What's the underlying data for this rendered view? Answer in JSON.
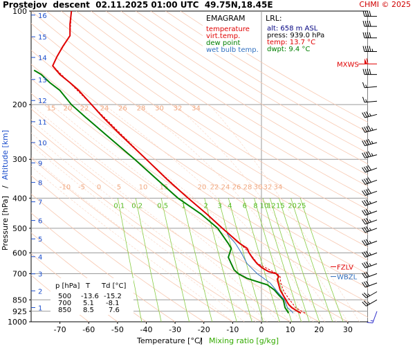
{
  "header": {
    "title": "Prostejov  descent  02.11.2025 01:00 UTC  49.75N,18.45E",
    "copyright": "CHMI © 2025"
  },
  "chart_data": {
    "type": "line",
    "title": "EMAGRAM",
    "xlabel": "Temperature [°C]",
    "xlabel_sep": "/",
    "xlabel2": "Mixing ratio [g/kg]",
    "ylabel": "Pressure [hPa]",
    "ylabel_sep": "/",
    "ylabel2": "Altitude [km]",
    "xlim": [
      -80,
      37
    ],
    "ylim_hpa": [
      1000,
      100
    ],
    "y_scale": "log",
    "x_ticks": [
      -70,
      -60,
      -50,
      -40,
      -30,
      -20,
      -10,
      0,
      10,
      20,
      30
    ],
    "pressure_ticks": [
      100,
      200,
      300,
      400,
      500,
      600,
      700,
      850,
      925,
      1000
    ],
    "altitude_ticks": [
      {
        "km": 1,
        "p": 900
      },
      {
        "km": 2,
        "p": 795
      },
      {
        "km": 3,
        "p": 701
      },
      {
        "km": 4,
        "p": 617
      },
      {
        "km": 5,
        "p": 541
      },
      {
        "km": 6,
        "p": 472
      },
      {
        "km": 7,
        "p": 411
      },
      {
        "km": 8,
        "p": 356
      },
      {
        "km": 9,
        "p": 308
      },
      {
        "km": 10,
        "p": 265
      },
      {
        "km": 11,
        "p": 227
      },
      {
        "km": 12,
        "p": 194
      },
      {
        "km": 13,
        "p": 166
      },
      {
        "km": 14,
        "p": 141
      },
      {
        "km": 15,
        "p": 121
      },
      {
        "km": 16,
        "p": 103
      }
    ],
    "dry_adiabat_labels": [
      "15",
      "20",
      "22",
      "24",
      "26",
      "28",
      "30",
      "32",
      "34"
    ],
    "moist_adiabat_labels": [
      "-10",
      "-5",
      "0",
      "5",
      "10",
      "15",
      "20",
      "22",
      "24",
      "26",
      "28",
      "30",
      "32",
      "34"
    ],
    "mixing_ratio_labels": [
      {
        "label": "0.1",
        "w": 0.1
      },
      {
        "label": "0.2",
        "w": 0.2
      },
      {
        "label": "0.5",
        "w": 0.5
      },
      {
        "label": "1",
        "w": 1
      },
      {
        "label": "2",
        "w": 2
      },
      {
        "label": "3",
        "w": 3
      },
      {
        "label": "4",
        "w": 4
      },
      {
        "label": "6",
        "w": 6
      },
      {
        "label": "8",
        "w": 8
      },
      {
        "label": "10",
        "w": 10
      },
      {
        "label": "12",
        "w": 12
      },
      {
        "label": "15",
        "w": 15
      },
      {
        "label": "20",
        "w": 20
      },
      {
        "label": "25",
        "w": 25
      }
    ],
    "legend": [
      {
        "name": "temperature",
        "color": "#e00000"
      },
      {
        "name": "virt.temp.",
        "color": "#e00000"
      },
      {
        "name": "dew point",
        "color": "#008000"
      },
      {
        "name": "wet bulb temp.",
        "color": "#3070c0"
      }
    ],
    "lrl": {
      "title": "LRL:",
      "alt": "alt: 658 m ASL",
      "press": "press: 939.0 hPa",
      "temp": "temp: 13.7 °C",
      "dwpt": "dwpt: 9.4 °C"
    },
    "markers": [
      {
        "label": "MXWS",
        "p": 148,
        "color": "#e00000"
      },
      {
        "label": "FZLV",
        "p": 665,
        "color": "#e00000"
      },
      {
        "label": "WBZL",
        "p": 715,
        "color": "#3070c0"
      }
    ],
    "table": {
      "headers": [
        "p [hPa]",
        "T",
        "Td [°C]"
      ],
      "rows": [
        [
          "500",
          "-13.6",
          "-15.2"
        ],
        [
          "700",
          "5.1",
          "-8.1"
        ],
        [
          "850",
          "8.5",
          "7.6"
        ]
      ]
    },
    "series": [
      {
        "name": "temperature",
        "color": "#e00000",
        "points": [
          [
            938,
            13.7
          ],
          [
            925,
            12.5
          ],
          [
            900,
            10.5
          ],
          [
            880,
            9.5
          ],
          [
            860,
            8.8
          ],
          [
            850,
            8.5
          ],
          [
            820,
            7.5
          ],
          [
            790,
            6.5
          ],
          [
            760,
            6.0
          ],
          [
            730,
            5.5
          ],
          [
            715,
            6.0
          ],
          [
            700,
            5.1
          ],
          [
            690,
            2.5
          ],
          [
            670,
            0.2
          ],
          [
            650,
            -1.5
          ],
          [
            625,
            -3.0
          ],
          [
            600,
            -4.3
          ],
          [
            580,
            -5.0
          ],
          [
            560,
            -7.5
          ],
          [
            500,
            -13.6
          ],
          [
            450,
            -19.0
          ],
          [
            400,
            -25.5
          ],
          [
            350,
            -32.5
          ],
          [
            300,
            -40.0
          ],
          [
            250,
            -49.0
          ],
          [
            220,
            -55.0
          ],
          [
            200,
            -59.0
          ],
          [
            180,
            -63.5
          ],
          [
            170,
            -66.5
          ],
          [
            160,
            -70.0
          ],
          [
            150,
            -72.5
          ],
          [
            140,
            -71.0
          ],
          [
            130,
            -69.0
          ],
          [
            120,
            -66.5
          ],
          [
            110,
            -66.5
          ],
          [
            100,
            -66.0
          ]
        ]
      },
      {
        "name": "virt.temp.",
        "color": "#e00000",
        "points": [
          [
            938,
            15.2
          ],
          [
            925,
            14.0
          ],
          [
            900,
            11.9
          ],
          [
            850,
            9.8
          ],
          [
            800,
            7.8
          ],
          [
            750,
            6.7
          ],
          [
            715,
            6.5
          ],
          [
            700,
            5.4
          ],
          [
            650,
            -1.3
          ],
          [
            600,
            -4.2
          ],
          [
            560,
            -7.4
          ],
          [
            500,
            -13.5
          ],
          [
            450,
            -19.0
          ],
          [
            400,
            -25.5
          ],
          [
            300,
            -40.0
          ],
          [
            200,
            -59.0
          ],
          [
            150,
            -72.5
          ],
          [
            140,
            -71.0
          ],
          [
            120,
            -66.5
          ],
          [
            100,
            -66.0
          ]
        ]
      },
      {
        "name": "dew point",
        "color": "#008000",
        "points": [
          [
            938,
            9.4
          ],
          [
            925,
            9.0
          ],
          [
            900,
            8.2
          ],
          [
            850,
            7.6
          ],
          [
            820,
            6.0
          ],
          [
            790,
            4.5
          ],
          [
            760,
            2.0
          ],
          [
            740,
            -2.0
          ],
          [
            725,
            -5.0
          ],
          [
            700,
            -8.1
          ],
          [
            680,
            -9.5
          ],
          [
            650,
            -10.5
          ],
          [
            620,
            -11.5
          ],
          [
            600,
            -11.0
          ],
          [
            580,
            -10.5
          ],
          [
            560,
            -11.5
          ],
          [
            500,
            -15.2
          ],
          [
            450,
            -21.0
          ],
          [
            400,
            -29.0
          ],
          [
            350,
            -36.0
          ],
          [
            300,
            -44.0
          ],
          [
            250,
            -54.0
          ],
          [
            220,
            -61.0
          ],
          [
            200,
            -66.0
          ],
          [
            180,
            -70.0
          ],
          [
            170,
            -73.5
          ],
          [
            160,
            -76.5
          ],
          [
            155,
            -79.0
          ]
        ]
      },
      {
        "name": "wet bulb temp.",
        "color": "#3070c0",
        "points": [
          [
            938,
            11.0
          ],
          [
            925,
            10.5
          ],
          [
            900,
            9.0
          ],
          [
            850,
            8.0
          ],
          [
            800,
            5.5
          ],
          [
            750,
            3.0
          ],
          [
            700,
            -1.5
          ],
          [
            650,
            -5.0
          ],
          [
            600,
            -7.0
          ],
          [
            560,
            -9.0
          ],
          [
            520,
            -12.0
          ]
        ]
      }
    ],
    "wind_barbs": [
      {
        "p": 925,
        "dir": 200,
        "speed": 15
      },
      {
        "p": 850,
        "dir": 240,
        "speed": 25
      },
      {
        "p": 800,
        "dir": 240,
        "speed": 25
      },
      {
        "p": 750,
        "dir": 250,
        "speed": 30
      },
      {
        "p": 700,
        "dir": 250,
        "speed": 30
      },
      {
        "p": 650,
        "dir": 250,
        "speed": 35
      },
      {
        "p": 600,
        "dir": 250,
        "speed": 35
      },
      {
        "p": 550,
        "dir": 250,
        "speed": 35
      },
      {
        "p": 500,
        "dir": 250,
        "speed": 35
      },
      {
        "p": 470,
        "dir": 250,
        "speed": 35
      },
      {
        "p": 440,
        "dir": 250,
        "speed": 35
      },
      {
        "p": 410,
        "dir": 250,
        "speed": 35
      },
      {
        "p": 380,
        "dir": 250,
        "speed": 40
      },
      {
        "p": 350,
        "dir": 250,
        "speed": 40
      },
      {
        "p": 320,
        "dir": 250,
        "speed": 40
      },
      {
        "p": 290,
        "dir": 255,
        "speed": 45
      },
      {
        "p": 265,
        "dir": 255,
        "speed": 45
      },
      {
        "p": 240,
        "dir": 255,
        "speed": 45
      },
      {
        "p": 215,
        "dir": 255,
        "speed": 35
      },
      {
        "p": 195,
        "dir": 265,
        "speed": 15
      },
      {
        "p": 175,
        "dir": 265,
        "speed": 15
      },
      {
        "p": 160,
        "dir": 270,
        "speed": 40
      },
      {
        "p": 148,
        "dir": 270,
        "speed": 60
      },
      {
        "p": 135,
        "dir": 270,
        "speed": 45
      },
      {
        "p": 122,
        "dir": 270,
        "speed": 40
      },
      {
        "p": 112,
        "dir": 270,
        "speed": 40
      },
      {
        "p": 104,
        "dir": 270,
        "speed": 40
      }
    ]
  }
}
